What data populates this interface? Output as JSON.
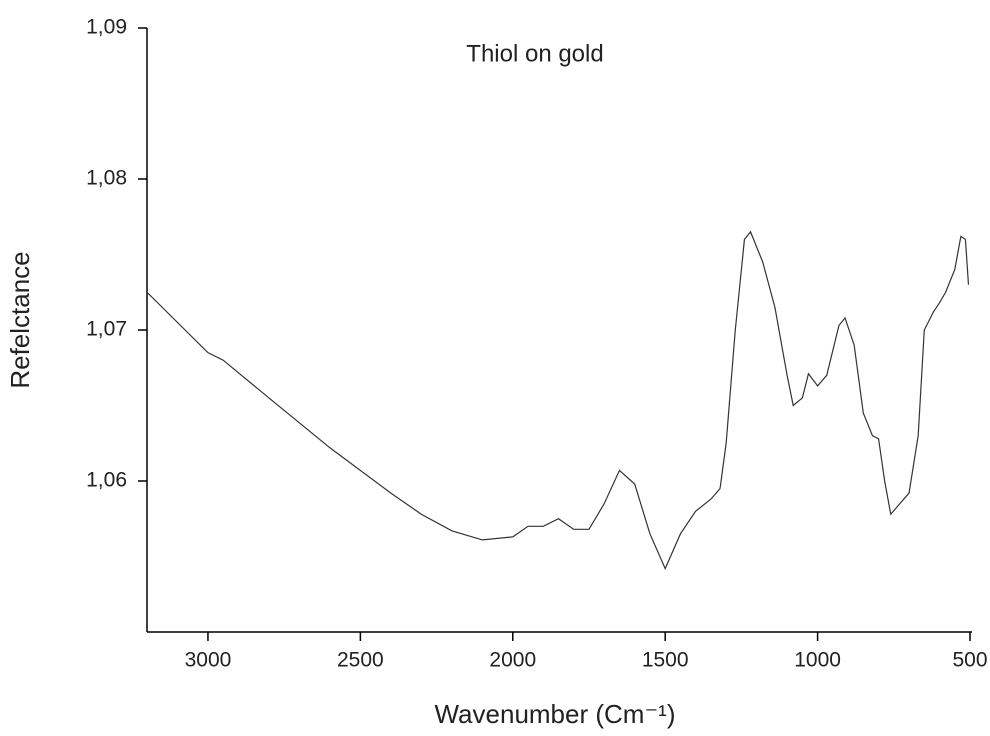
{
  "chart_data": {
    "type": "line",
    "title": "Thiol on gold",
    "x_label": "Wavenumber (Cm⁻¹)",
    "y_label": "Refelctance",
    "xlim": [
      3200,
      500
    ],
    "ylim": [
      1.05,
      1.09
    ],
    "xticks": [
      3000,
      2500,
      2000,
      1500,
      1000,
      500
    ],
    "yticks": [
      {
        "value": 1.06,
        "label": "1,06"
      },
      {
        "value": 1.07,
        "label": "1,07"
      },
      {
        "value": 1.08,
        "label": "1,08"
      },
      {
        "value": 1.09,
        "label": "1,09"
      }
    ],
    "grid": false,
    "series": [
      {
        "color": "#333333",
        "x": [
          3200,
          3000,
          2950,
          2800,
          2600,
          2400,
          2300,
          2200,
          2100,
          2000,
          1950,
          1900,
          1850,
          1800,
          1750,
          1700,
          1650,
          1600,
          1550,
          1500,
          1450,
          1400,
          1350,
          1320,
          1300,
          1270,
          1240,
          1220,
          1180,
          1140,
          1100,
          1080,
          1050,
          1030,
          1000,
          970,
          930,
          910,
          880,
          850,
          820,
          800,
          780,
          760,
          730,
          700,
          670,
          650,
          620,
          600,
          580,
          550,
          530,
          515,
          505
        ],
        "values": [
          1.0725,
          1.0685,
          1.068,
          1.0655,
          1.0622,
          1.0592,
          1.0578,
          1.0567,
          1.0561,
          1.0563,
          1.057,
          1.057,
          1.0575,
          1.0568,
          1.0568,
          1.0585,
          1.0607,
          1.0598,
          1.0565,
          1.0542,
          1.0565,
          1.058,
          1.0588,
          1.0595,
          1.0625,
          1.07,
          1.076,
          1.0765,
          1.0745,
          1.0715,
          1.067,
          1.065,
          1.0655,
          1.0671,
          1.0663,
          1.067,
          1.0703,
          1.0708,
          1.069,
          1.0645,
          1.063,
          1.0628,
          1.06,
          1.0578,
          1.0585,
          1.0592,
          1.063,
          1.07,
          1.0712,
          1.0718,
          1.0725,
          1.074,
          1.0762,
          1.076,
          1.073
        ]
      }
    ]
  }
}
